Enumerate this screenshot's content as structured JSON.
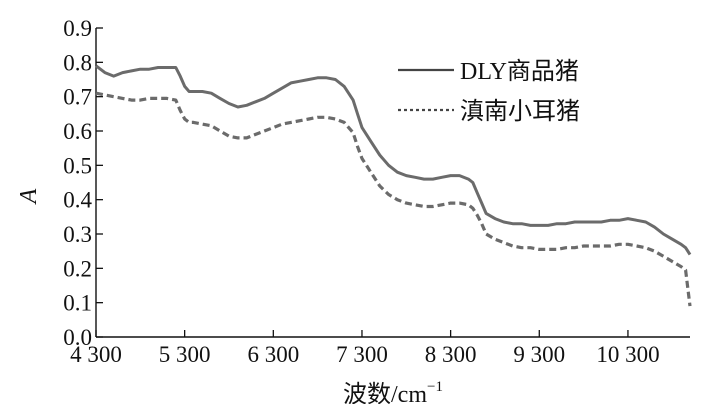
{
  "chart_data": {
    "type": "line",
    "xlabel": "波数/cm",
    "xlabel_sup": "−1",
    "ylabel": "A",
    "xlim": [
      4300,
      11000
    ],
    "ylim": [
      0.0,
      0.9
    ],
    "xticks": [
      4300,
      5300,
      6300,
      7300,
      8300,
      9300,
      10300
    ],
    "xtick_labels": [
      "4 300",
      "5 300",
      "6 300",
      "7 300",
      "8 300",
      "9 300",
      "10 300"
    ],
    "yticks": [
      0.0,
      0.1,
      0.2,
      0.3,
      0.4,
      0.5,
      0.6,
      0.7,
      0.8,
      0.9
    ],
    "ytick_labels": [
      "0.0",
      "0.1",
      "0.2",
      "0.3",
      "0.4",
      "0.5",
      "0.6",
      "0.7",
      "0.8",
      "0.9"
    ],
    "grid": false,
    "legend": "top-right",
    "series": [
      {
        "name": "DLY商品猪",
        "style": "solid",
        "color": "#6b6b6b",
        "x": [
          4300,
          4400,
          4500,
          4600,
          4700,
          4800,
          4900,
          5000,
          5100,
          5200,
          5250,
          5300,
          5350,
          5400,
          5500,
          5600,
          5700,
          5800,
          5900,
          6000,
          6100,
          6200,
          6300,
          6400,
          6500,
          6600,
          6700,
          6800,
          6900,
          7000,
          7100,
          7200,
          7250,
          7300,
          7350,
          7400,
          7500,
          7600,
          7700,
          7800,
          7900,
          8000,
          8100,
          8200,
          8300,
          8400,
          8500,
          8550,
          8600,
          8650,
          8700,
          8800,
          8900,
          9000,
          9100,
          9200,
          9300,
          9400,
          9500,
          9600,
          9700,
          9800,
          9900,
          10000,
          10100,
          10200,
          10300,
          10400,
          10500,
          10600,
          10700,
          10800,
          10900,
          10950,
          11000
        ],
        "y": [
          0.79,
          0.77,
          0.76,
          0.77,
          0.775,
          0.78,
          0.78,
          0.785,
          0.785,
          0.785,
          0.76,
          0.73,
          0.715,
          0.715,
          0.715,
          0.71,
          0.695,
          0.68,
          0.67,
          0.675,
          0.685,
          0.695,
          0.71,
          0.725,
          0.74,
          0.745,
          0.75,
          0.755,
          0.755,
          0.75,
          0.73,
          0.69,
          0.65,
          0.61,
          0.59,
          0.57,
          0.53,
          0.5,
          0.48,
          0.47,
          0.465,
          0.46,
          0.46,
          0.465,
          0.47,
          0.47,
          0.46,
          0.45,
          0.42,
          0.39,
          0.36,
          0.345,
          0.335,
          0.33,
          0.33,
          0.325,
          0.325,
          0.325,
          0.33,
          0.33,
          0.335,
          0.335,
          0.335,
          0.335,
          0.34,
          0.34,
          0.345,
          0.34,
          0.335,
          0.32,
          0.3,
          0.285,
          0.27,
          0.26,
          0.24
        ]
      },
      {
        "name": "滇南小耳猪",
        "style": "dashed",
        "color": "#6b6b6b",
        "x": [
          4300,
          4400,
          4500,
          4600,
          4700,
          4800,
          4900,
          5000,
          5100,
          5200,
          5250,
          5300,
          5350,
          5400,
          5500,
          5600,
          5700,
          5800,
          5900,
          6000,
          6100,
          6200,
          6300,
          6400,
          6500,
          6600,
          6700,
          6800,
          6900,
          7000,
          7100,
          7200,
          7250,
          7300,
          7350,
          7400,
          7500,
          7600,
          7700,
          7800,
          7900,
          8000,
          8100,
          8200,
          8300,
          8400,
          8500,
          8550,
          8600,
          8650,
          8700,
          8800,
          8900,
          9000,
          9100,
          9200,
          9300,
          9400,
          9500,
          9600,
          9700,
          9800,
          9900,
          10000,
          10100,
          10200,
          10300,
          10400,
          10500,
          10600,
          10700,
          10800,
          10900,
          10950,
          11000
        ],
        "y": [
          0.71,
          0.705,
          0.7,
          0.695,
          0.69,
          0.69,
          0.695,
          0.695,
          0.695,
          0.69,
          0.66,
          0.635,
          0.625,
          0.625,
          0.62,
          0.615,
          0.6,
          0.585,
          0.58,
          0.58,
          0.59,
          0.6,
          0.61,
          0.62,
          0.625,
          0.63,
          0.635,
          0.64,
          0.64,
          0.635,
          0.625,
          0.595,
          0.555,
          0.52,
          0.5,
          0.48,
          0.44,
          0.415,
          0.4,
          0.39,
          0.385,
          0.38,
          0.38,
          0.385,
          0.39,
          0.39,
          0.385,
          0.375,
          0.355,
          0.33,
          0.3,
          0.285,
          0.275,
          0.265,
          0.26,
          0.26,
          0.255,
          0.255,
          0.255,
          0.26,
          0.26,
          0.265,
          0.265,
          0.265,
          0.265,
          0.27,
          0.27,
          0.265,
          0.26,
          0.25,
          0.235,
          0.22,
          0.205,
          0.195,
          0.09
        ]
      }
    ]
  }
}
